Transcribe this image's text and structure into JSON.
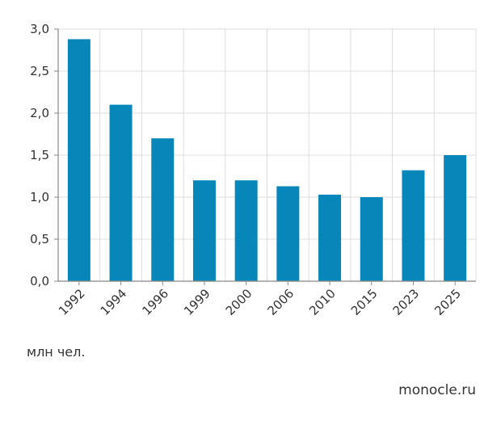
{
  "chart_data": {
    "type": "bar",
    "categories": [
      "1992",
      "1994",
      "1996",
      "1999",
      "2000",
      "2006",
      "2010",
      "2015",
      "2023",
      "2025"
    ],
    "values": [
      2.88,
      2.1,
      1.7,
      1.2,
      1.2,
      1.13,
      1.03,
      1.0,
      1.32,
      1.5
    ],
    "ylim": [
      0,
      3
    ],
    "yticks": [
      "0,0",
      "0,5",
      "1,0",
      "1,5",
      "2,0",
      "2,5",
      "3,0"
    ],
    "grid": true,
    "bar_color": "#0787b9",
    "grid_color": "#dddddd",
    "axis_color": "#888888"
  },
  "unit_label": "млн чел.",
  "source_label": "monocle.ru"
}
